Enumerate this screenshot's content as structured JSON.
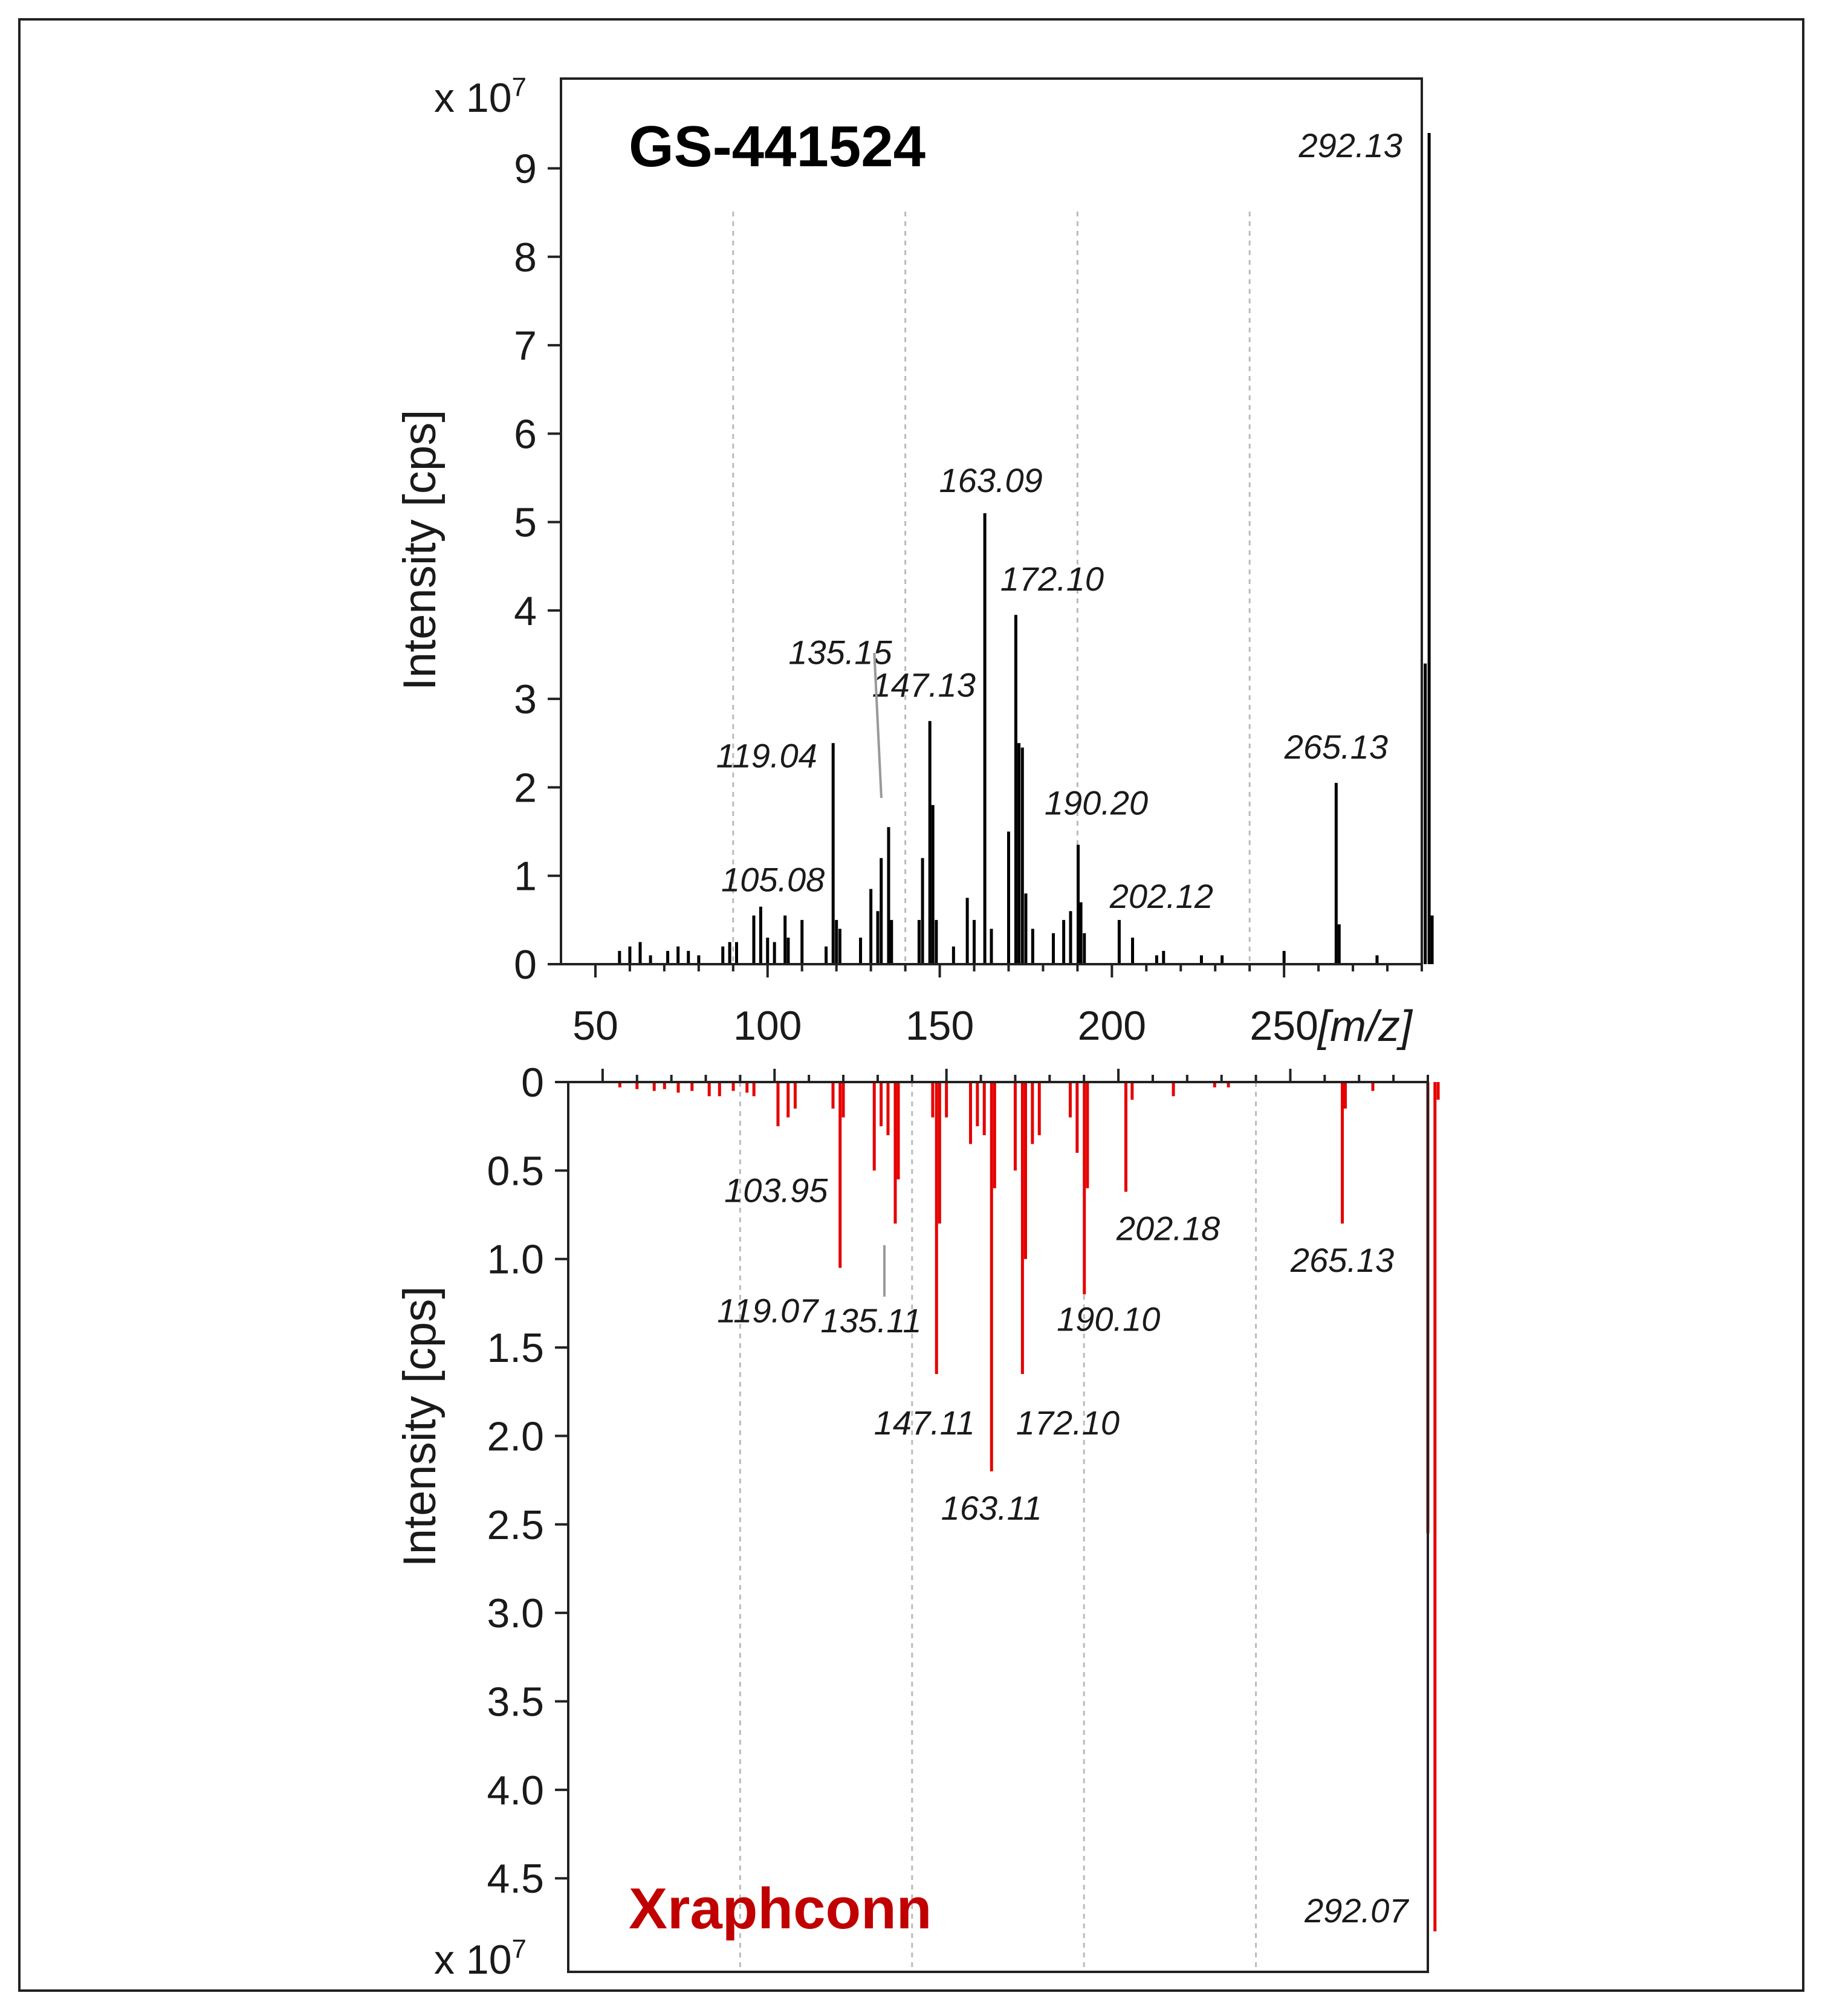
{
  "chart_data": [
    {
      "type": "bar",
      "title": "GS-441524",
      "title_color": "#000000",
      "bar_color": "#000000",
      "orientation": "up",
      "xlabel": "[m/z]",
      "ylabel": "Intensity [cps]",
      "y_multiplier": "x 10^7",
      "y_multiplier_base": "x 10",
      "y_multiplier_exp": "7",
      "xlim": [
        40,
        290
      ],
      "ylim": [
        0,
        10
      ],
      "xticks": [
        50,
        100,
        150,
        200,
        250
      ],
      "yticks": [
        0,
        1,
        2,
        3,
        4,
        5,
        6,
        7,
        8,
        9
      ],
      "ytick_labels": [
        "0",
        "1",
        "2",
        "3",
        "4",
        "5",
        "6",
        "7",
        "8",
        "9"
      ],
      "gridlines_x": [
        90,
        140,
        190,
        240
      ],
      "peaks": [
        {
          "x": 57,
          "y": 0.15
        },
        {
          "x": 60,
          "y": 0.2
        },
        {
          "x": 63,
          "y": 0.25
        },
        {
          "x": 66,
          "y": 0.1
        },
        {
          "x": 71,
          "y": 0.15
        },
        {
          "x": 74,
          "y": 0.2
        },
        {
          "x": 77,
          "y": 0.15
        },
        {
          "x": 80,
          "y": 0.1
        },
        {
          "x": 87,
          "y": 0.2
        },
        {
          "x": 89,
          "y": 0.25
        },
        {
          "x": 91,
          "y": 0.25
        },
        {
          "x": 96,
          "y": 0.55
        },
        {
          "x": 98,
          "y": 0.65
        },
        {
          "x": 100,
          "y": 0.3
        },
        {
          "x": 102,
          "y": 0.25
        },
        {
          "x": 105.08,
          "y": 0.55
        },
        {
          "x": 106,
          "y": 0.3
        },
        {
          "x": 110,
          "y": 0.5
        },
        {
          "x": 117,
          "y": 0.2
        },
        {
          "x": 119.04,
          "y": 2.5
        },
        {
          "x": 120,
          "y": 0.5
        },
        {
          "x": 121,
          "y": 0.4
        },
        {
          "x": 127,
          "y": 0.3
        },
        {
          "x": 130,
          "y": 0.85
        },
        {
          "x": 132,
          "y": 0.6
        },
        {
          "x": 133,
          "y": 1.2
        },
        {
          "x": 135.15,
          "y": 1.55
        },
        {
          "x": 136,
          "y": 0.5
        },
        {
          "x": 144,
          "y": 0.5
        },
        {
          "x": 145,
          "y": 1.2
        },
        {
          "x": 147.13,
          "y": 2.75
        },
        {
          "x": 148,
          "y": 1.8
        },
        {
          "x": 149,
          "y": 0.5
        },
        {
          "x": 154,
          "y": 0.2
        },
        {
          "x": 158,
          "y": 0.75
        },
        {
          "x": 160,
          "y": 0.5
        },
        {
          "x": 163.09,
          "y": 5.1
        },
        {
          "x": 165,
          "y": 0.4
        },
        {
          "x": 170,
          "y": 1.5
        },
        {
          "x": 172.1,
          "y": 3.95
        },
        {
          "x": 173,
          "y": 2.5
        },
        {
          "x": 174,
          "y": 2.45
        },
        {
          "x": 175,
          "y": 0.8
        },
        {
          "x": 177,
          "y": 0.4
        },
        {
          "x": 183,
          "y": 0.35
        },
        {
          "x": 186,
          "y": 0.5
        },
        {
          "x": 188,
          "y": 0.6
        },
        {
          "x": 190.2,
          "y": 1.35
        },
        {
          "x": 191,
          "y": 0.7
        },
        {
          "x": 192,
          "y": 0.35
        },
        {
          "x": 202.12,
          "y": 0.5
        },
        {
          "x": 206,
          "y": 0.3
        },
        {
          "x": 213,
          "y": 0.1
        },
        {
          "x": 215,
          "y": 0.15
        },
        {
          "x": 226,
          "y": 0.1
        },
        {
          "x": 232,
          "y": 0.1
        },
        {
          "x": 250,
          "y": 0.15
        },
        {
          "x": 265.13,
          "y": 2.05
        },
        {
          "x": 266,
          "y": 0.45
        },
        {
          "x": 277,
          "y": 0.1
        },
        {
          "x": 291,
          "y": 3.4
        },
        {
          "x": 292.13,
          "y": 9.4
        },
        {
          "x": 293,
          "y": 0.55
        }
      ],
      "annotations": [
        {
          "text": "292.13",
          "x": 292.13,
          "y": 9.4
        },
        {
          "text": "163.09",
          "x": 163.09,
          "y": 5.1
        },
        {
          "text": "172.10",
          "x": 172.1,
          "y": 3.95
        },
        {
          "text": "135.15",
          "x": 135.15,
          "y": 1.55
        },
        {
          "text": "147.13",
          "x": 147.13,
          "y": 2.75
        },
        {
          "text": "119.04",
          "x": 119.04,
          "y": 2.5
        },
        {
          "text": "265.13",
          "x": 265.13,
          "y": 2.05
        },
        {
          "text": "190.20",
          "x": 190.2,
          "y": 1.35
        },
        {
          "text": "105.08",
          "x": 105.08,
          "y": 0.55
        },
        {
          "text": "202.12",
          "x": 202.12,
          "y": 0.5
        }
      ]
    },
    {
      "type": "bar",
      "title": "Xraphconn",
      "title_color": "#c00000",
      "bar_color": "#e60000",
      "orientation": "down",
      "xlabel": "[m/z]",
      "ylabel": "Intensity [cps]",
      "y_multiplier": "x 10^7",
      "y_multiplier_base": "x 10",
      "y_multiplier_exp": "7",
      "xlim": [
        40,
        290
      ],
      "ylim": [
        0,
        5
      ],
      "xticks": [
        50,
        100,
        150,
        200,
        250
      ],
      "yticks": [
        0,
        0.5,
        1.0,
        1.5,
        2.0,
        2.5,
        3.0,
        3.5,
        4.0,
        4.5
      ],
      "ytick_labels": [
        "0",
        "0.5",
        "1.0",
        "1.5",
        "2.0",
        "2.5",
        "3.0",
        "3.5",
        "4.0",
        "4.5"
      ],
      "gridlines_x": [
        90,
        140,
        190,
        240
      ],
      "peaks": [
        {
          "x": 55,
          "y": 0.03
        },
        {
          "x": 60,
          "y": 0.04
        },
        {
          "x": 65,
          "y": 0.05
        },
        {
          "x": 68,
          "y": 0.04
        },
        {
          "x": 72,
          "y": 0.06
        },
        {
          "x": 76,
          "y": 0.05
        },
        {
          "x": 81,
          "y": 0.08
        },
        {
          "x": 84,
          "y": 0.08
        },
        {
          "x": 88,
          "y": 0.05
        },
        {
          "x": 92,
          "y": 0.06
        },
        {
          "x": 94,
          "y": 0.08
        },
        {
          "x": 101,
          "y": 0.25
        },
        {
          "x": 103.95,
          "y": 0.2
        },
        {
          "x": 106,
          "y": 0.15
        },
        {
          "x": 117,
          "y": 0.15
        },
        {
          "x": 119.07,
          "y": 1.05
        },
        {
          "x": 120,
          "y": 0.2
        },
        {
          "x": 129,
          "y": 0.5
        },
        {
          "x": 131,
          "y": 0.25
        },
        {
          "x": 133,
          "y": 0.3
        },
        {
          "x": 135.11,
          "y": 0.8
        },
        {
          "x": 136,
          "y": 0.55
        },
        {
          "x": 146,
          "y": 0.2
        },
        {
          "x": 147.11,
          "y": 1.65
        },
        {
          "x": 148,
          "y": 0.8
        },
        {
          "x": 150,
          "y": 0.2
        },
        {
          "x": 157,
          "y": 0.35
        },
        {
          "x": 159,
          "y": 0.25
        },
        {
          "x": 161,
          "y": 0.3
        },
        {
          "x": 163.11,
          "y": 2.2
        },
        {
          "x": 164,
          "y": 0.6
        },
        {
          "x": 170,
          "y": 0.5
        },
        {
          "x": 172.1,
          "y": 1.65
        },
        {
          "x": 173,
          "y": 1.0
        },
        {
          "x": 175,
          "y": 0.35
        },
        {
          "x": 177,
          "y": 0.3
        },
        {
          "x": 186,
          "y": 0.2
        },
        {
          "x": 188,
          "y": 0.4
        },
        {
          "x": 190.1,
          "y": 1.2
        },
        {
          "x": 191,
          "y": 0.6
        },
        {
          "x": 202.18,
          "y": 0.62
        },
        {
          "x": 204,
          "y": 0.1
        },
        {
          "x": 216,
          "y": 0.08
        },
        {
          "x": 228,
          "y": 0.03
        },
        {
          "x": 232,
          "y": 0.03
        },
        {
          "x": 265.13,
          "y": 0.8
        },
        {
          "x": 266,
          "y": 0.15
        },
        {
          "x": 274,
          "y": 0.05
        },
        {
          "x": 290,
          "y": 2.55
        },
        {
          "x": 292.07,
          "y": 4.8
        },
        {
          "x": 293,
          "y": 0.1
        }
      ],
      "annotations": [
        {
          "text": "103.95",
          "x": 103.95,
          "y": 0.2,
          "italic": false
        },
        {
          "text": "119.07",
          "x": 119.07,
          "y": 1.05
        },
        {
          "text": "135.11",
          "x": 135.11,
          "y": 0.8
        },
        {
          "text": "147.11",
          "x": 147.11,
          "y": 1.65
        },
        {
          "text": "163.11",
          "x": 163.11,
          "y": 2.2
        },
        {
          "text": "172.10",
          "x": 172.1,
          "y": 1.65
        },
        {
          "text": "190.10",
          "x": 190.1,
          "y": 1.2
        },
        {
          "text": "202.18",
          "x": 202.18,
          "y": 0.62
        },
        {
          "text": "265.13",
          "x": 265.13,
          "y": 0.8
        },
        {
          "text": "292.07",
          "x": 292.07,
          "y": 4.8
        }
      ]
    }
  ]
}
